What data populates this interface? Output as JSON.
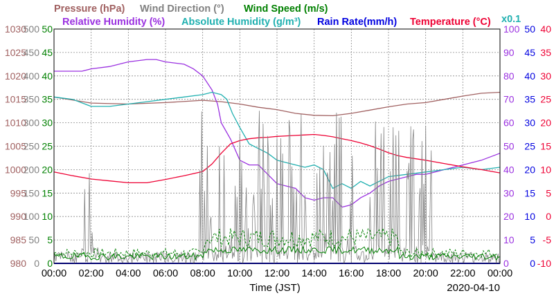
{
  "chart_data": {
    "type": "line",
    "date": "2020-04-10",
    "xlabel": "Time (JST)",
    "x_ticks": [
      "00:00",
      "02:00",
      "04:00",
      "06:00",
      "08:00",
      "10:00",
      "12:00",
      "14:00",
      "16:00",
      "18:00",
      "20:00",
      "22:00",
      "00:00"
    ],
    "grid": true,
    "legend": [
      {
        "key": "pressure",
        "label": "Pressure (hPa)",
        "color": "#a06060"
      },
      {
        "key": "wind_dir",
        "label": "Wind Direction (°)",
        "color": "#808080"
      },
      {
        "key": "wind_speed",
        "label": "Wind Speed (m/s)",
        "color": "#008000"
      },
      {
        "key": "rh",
        "label": "Relative Humidity (%)",
        "color": "#9a30e0"
      },
      {
        "key": "ah",
        "label": "Absolute Humidity (g/m³)",
        "color": "#20b0b0"
      },
      {
        "key": "rain",
        "label": "Rain Rate(mm/h)",
        "color": "#0000e0"
      },
      {
        "key": "temp",
        "label": "Temperature (°C)",
        "color": "#ee0033"
      }
    ],
    "ah_scale_note": "x0.1",
    "axes": {
      "pressure": {
        "min": 980,
        "max": 1030,
        "step": 5,
        "color": "#a06060"
      },
      "wind_dir": {
        "min": 0,
        "max": 500,
        "step": 50,
        "color": "#808080"
      },
      "wind_speed": {
        "min": 0,
        "max": 50,
        "step": 5,
        "color": "#008000"
      },
      "rh": {
        "min": 0,
        "max": 100,
        "step": 10,
        "color": "#9a30e0"
      },
      "rain": {
        "min": 0,
        "max": 50,
        "step": 5,
        "color": "#0000e0"
      },
      "temp": {
        "min": -10,
        "max": 40,
        "step": 5,
        "color": "#ee0033"
      }
    },
    "series": [
      {
        "name": "Pressure (hPa)",
        "axis": "pressure",
        "x": [
          0,
          2,
          4,
          6,
          8,
          9,
          10,
          11,
          12,
          13,
          14,
          15,
          16,
          17,
          18,
          19,
          20,
          21,
          22,
          23,
          24
        ],
        "y": [
          1015.5,
          1014.2,
          1014.0,
          1014.3,
          1014.8,
          1014.5,
          1014.0,
          1013.3,
          1012.8,
          1012.0,
          1011.6,
          1011.5,
          1012.0,
          1012.7,
          1013.4,
          1014.0,
          1014.3,
          1015.0,
          1015.7,
          1016.3,
          1016.5
        ]
      },
      {
        "name": "Relative Humidity (%)",
        "axis": "rh",
        "x": [
          0,
          0.5,
          1,
          1.5,
          2,
          3,
          4,
          5,
          5.5,
          6,
          7,
          7.5,
          8,
          8.5,
          8.8,
          9,
          9.5,
          10,
          10.5,
          11,
          11.5,
          12,
          12.5,
          13,
          13.5,
          14,
          14.5,
          15,
          15.5,
          16,
          16.5,
          17,
          17.5,
          18,
          18.5,
          19,
          19.5,
          20,
          21,
          22,
          23,
          24
        ],
        "y": [
          82,
          82,
          82,
          82,
          83,
          84,
          86,
          87,
          87,
          86,
          85,
          83,
          80,
          74,
          68,
          60,
          53,
          44,
          42,
          42,
          38,
          34,
          33,
          32,
          28,
          27,
          28,
          28,
          24,
          25,
          28,
          30,
          33,
          35,
          36,
          37,
          38,
          38,
          40,
          42,
          44,
          47
        ]
      },
      {
        "name": "Absolute Humidity (g/m³)",
        "axis": "rh",
        "x": [
          0,
          1,
          2,
          3,
          4,
          5,
          6,
          7,
          8,
          8.5,
          9,
          9.3,
          9.6,
          10,
          10.5,
          11,
          11.5,
          12,
          12.5,
          13,
          13.5,
          14,
          14.5,
          15,
          15.5,
          16,
          16.5,
          17,
          18,
          19,
          20,
          21,
          22,
          23,
          24
        ],
        "y": [
          71,
          70,
          67,
          67,
          68,
          69,
          70,
          71,
          72,
          73,
          72,
          70,
          64,
          58,
          51,
          49,
          47,
          44,
          43,
          42,
          41,
          42,
          40,
          32,
          34,
          32,
          35,
          33,
          37,
          38,
          39,
          40,
          41,
          40,
          41
        ]
      },
      {
        "name": "Temperature (°C)",
        "axis": "temp",
        "x": [
          0,
          1,
          2,
          3,
          4,
          5,
          6,
          7,
          8,
          8.5,
          9,
          9.5,
          10,
          10.5,
          11,
          11.5,
          12,
          12.5,
          13,
          13.5,
          14,
          14.5,
          15,
          15.5,
          16,
          16.5,
          17,
          17.5,
          18,
          18.5,
          19,
          19.5,
          20,
          21,
          22,
          23,
          24
        ],
        "y": [
          9.5,
          8.7,
          8.0,
          7.6,
          7.2,
          7.2,
          7.9,
          8.7,
          9.6,
          11.2,
          13.5,
          15.5,
          16.2,
          16.6,
          16.8,
          16.9,
          17.1,
          17.2,
          17.3,
          17.4,
          17.5,
          17.3,
          17.0,
          16.6,
          16.2,
          15.7,
          15.1,
          14.4,
          13.6,
          13.0,
          12.6,
          12.3,
          12.0,
          11.3,
          10.6,
          10.0,
          9.3
        ]
      },
      {
        "name": "Rain Rate(mm/h)",
        "axis": "rain",
        "x": [
          0,
          24
        ],
        "y": [
          0,
          0
        ]
      }
    ]
  }
}
